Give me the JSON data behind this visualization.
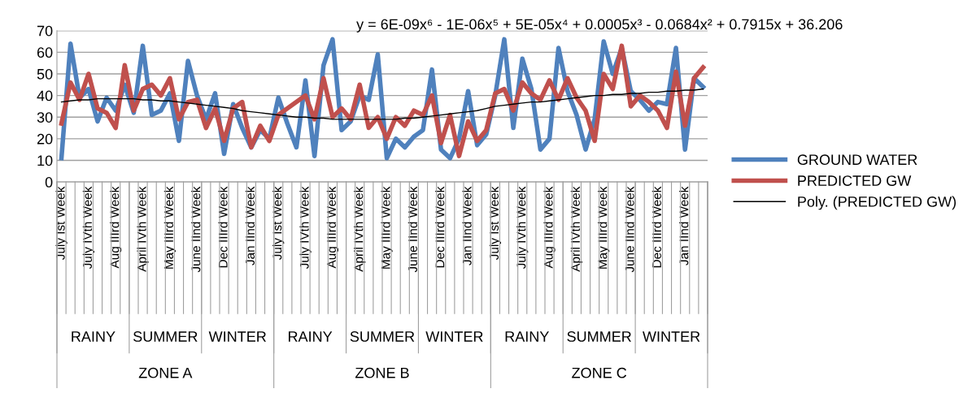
{
  "chart_data": {
    "type": "line",
    "categories": [
      "July Ist Week",
      null,
      null,
      "July IVth Week",
      null,
      null,
      "Aug IIIrd Week",
      null,
      null,
      "April IVth Week",
      null,
      null,
      "May IIIrd Week",
      null,
      null,
      "June IInd Week",
      null,
      null,
      "Dec IIIrd Week",
      null,
      null,
      "Jan IInd Week",
      null,
      null,
      "July Ist Week",
      null,
      null,
      "July IVth Week",
      null,
      null,
      "Aug IIIrd Week",
      null,
      null,
      "April IVth Week",
      null,
      null,
      "May IIIrd Week",
      null,
      null,
      "June IInd Week",
      null,
      null,
      "Dec IIIrd Week",
      null,
      null,
      "Jan IInd Week",
      null,
      null,
      "July Ist Week",
      null,
      null,
      "July IVth Week",
      null,
      null,
      "Aug IIIrd Week",
      null,
      null,
      "April IVth Week",
      null,
      null,
      "May IIIrd Week",
      null,
      null,
      "June IInd Week",
      null,
      null,
      "Dec IIIrd Week",
      null,
      null,
      "Jan IInd Week",
      null,
      null
    ],
    "series": [
      {
        "name": "GROUND WATER",
        "color": "#4f81bd",
        "values": [
          11,
          64,
          39,
          43,
          28,
          39,
          33,
          45,
          32,
          63,
          31,
          33,
          41,
          19,
          56,
          40,
          29,
          41,
          13,
          36,
          25,
          16,
          24,
          20,
          39,
          27,
          16,
          47,
          12,
          54,
          66,
          24,
          28,
          40,
          38,
          59,
          11,
          20,
          16,
          21,
          24,
          52,
          15,
          11,
          20,
          42,
          17,
          22,
          40,
          66,
          25,
          57,
          43,
          15,
          20,
          62,
          42,
          31,
          15,
          29,
          65,
          50,
          62,
          42,
          38,
          33,
          37,
          36,
          62,
          15,
          48,
          44
        ]
      },
      {
        "name": "PREDICTED GW",
        "color": "#c0504d",
        "values": [
          27,
          46,
          38,
          50,
          34,
          32,
          25,
          54,
          33,
          43,
          45,
          40,
          48,
          29,
          37,
          38,
          25,
          34,
          19,
          34,
          37,
          16,
          26,
          19,
          31,
          34,
          37,
          40,
          29,
          48,
          30,
          34,
          29,
          45,
          25,
          30,
          20,
          30,
          26,
          33,
          31,
          40,
          18,
          31,
          12,
          28,
          19,
          24,
          41,
          43,
          33,
          46,
          41,
          38,
          47,
          38,
          48,
          39,
          33,
          19,
          50,
          43,
          63,
          35,
          40,
          37,
          33,
          25,
          51,
          26,
          48,
          53
        ]
      },
      {
        "name": "Poly. (PREDICTED GW)",
        "color": "#000000",
        "type": "line",
        "values": [
          37,
          37.5,
          38,
          38,
          38.5,
          38.5,
          38.5,
          38.5,
          38.5,
          38,
          38,
          37.5,
          37.5,
          37,
          36.5,
          36,
          35.5,
          35,
          34.5,
          34,
          33,
          32.5,
          32,
          31.5,
          31,
          30.5,
          30,
          30,
          29.5,
          29.5,
          29,
          29,
          29,
          29,
          29,
          29,
          29,
          29,
          29.5,
          29.5,
          30,
          30.5,
          31,
          31.5,
          32,
          32.5,
          33,
          34,
          35,
          35.5,
          36,
          36.5,
          37,
          37,
          37.5,
          38,
          38.5,
          39,
          39.5,
          40,
          40,
          40.5,
          40.5,
          41,
          41,
          41.5,
          41.5,
          42,
          42,
          42.5,
          42.5,
          43
        ]
      }
    ],
    "ylim": [
      0,
      70
    ],
    "yticks": [
      0,
      10,
      20,
      30,
      40,
      50,
      60,
      70
    ],
    "grid": "y",
    "legend": "right",
    "annotations": [
      "y = 6E-09x⁶ - 1E-06x⁵ + 5E-05x⁴ + 0.0005x³ - 0.0684x² + 0.7915x + 36.206",
      "RAINY",
      "SUMMER",
      "WINTER",
      "RAINY",
      "SUMMER",
      "WINTER",
      "RAINY",
      "SUMMER",
      "WINTER",
      "ZONE A",
      "ZONE B",
      "ZONE C"
    ]
  }
}
